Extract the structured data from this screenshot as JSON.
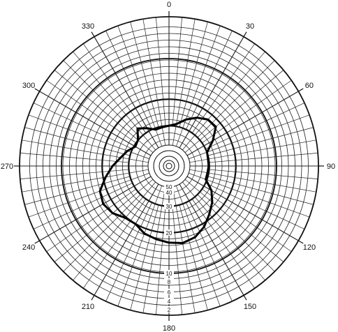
{
  "chart_data": {
    "type": "polar",
    "title": "",
    "angle_ticks": [
      0,
      30,
      60,
      90,
      120,
      150,
      180,
      210,
      240,
      270,
      300,
      330
    ],
    "angle_tick_labels": [
      "0",
      "30",
      "60",
      "90",
      "120",
      "150",
      "180",
      "210",
      "240",
      "270",
      "300",
      "330"
    ],
    "radial_tick_labels": [
      "50",
      "40",
      "30",
      "20",
      "10",
      "8",
      "6",
      "4",
      "2"
    ],
    "grid": true,
    "series": [
      {
        "theta": [
          0,
          10,
          20,
          30,
          40,
          50,
          60,
          70,
          80,
          90,
          100,
          110,
          120,
          130,
          140,
          150,
          160,
          170,
          180,
          190,
          200,
          210,
          220,
          230,
          240,
          250,
          260,
          270,
          280,
          290,
          300,
          310,
          320,
          330,
          340,
          350,
          360
        ],
        "r": [
          30.1,
          29.2,
          26.6,
          24.2,
          22.4,
          22.2,
          26.2,
          30.0,
          30.6,
          30.6,
          31.0,
          31.0,
          26.8,
          24.0,
          21.6,
          19.2,
          17.8,
          17.2,
          17.6,
          18.2,
          18.8,
          20.0,
          19.8,
          18.4,
          17.8,
          18.4,
          21.0,
          24.0,
          26.8,
          28.6,
          31.2,
          30.0,
          26.8,
          28.8,
          31.2,
          30.8,
          30.1
        ]
      }
    ]
  }
}
